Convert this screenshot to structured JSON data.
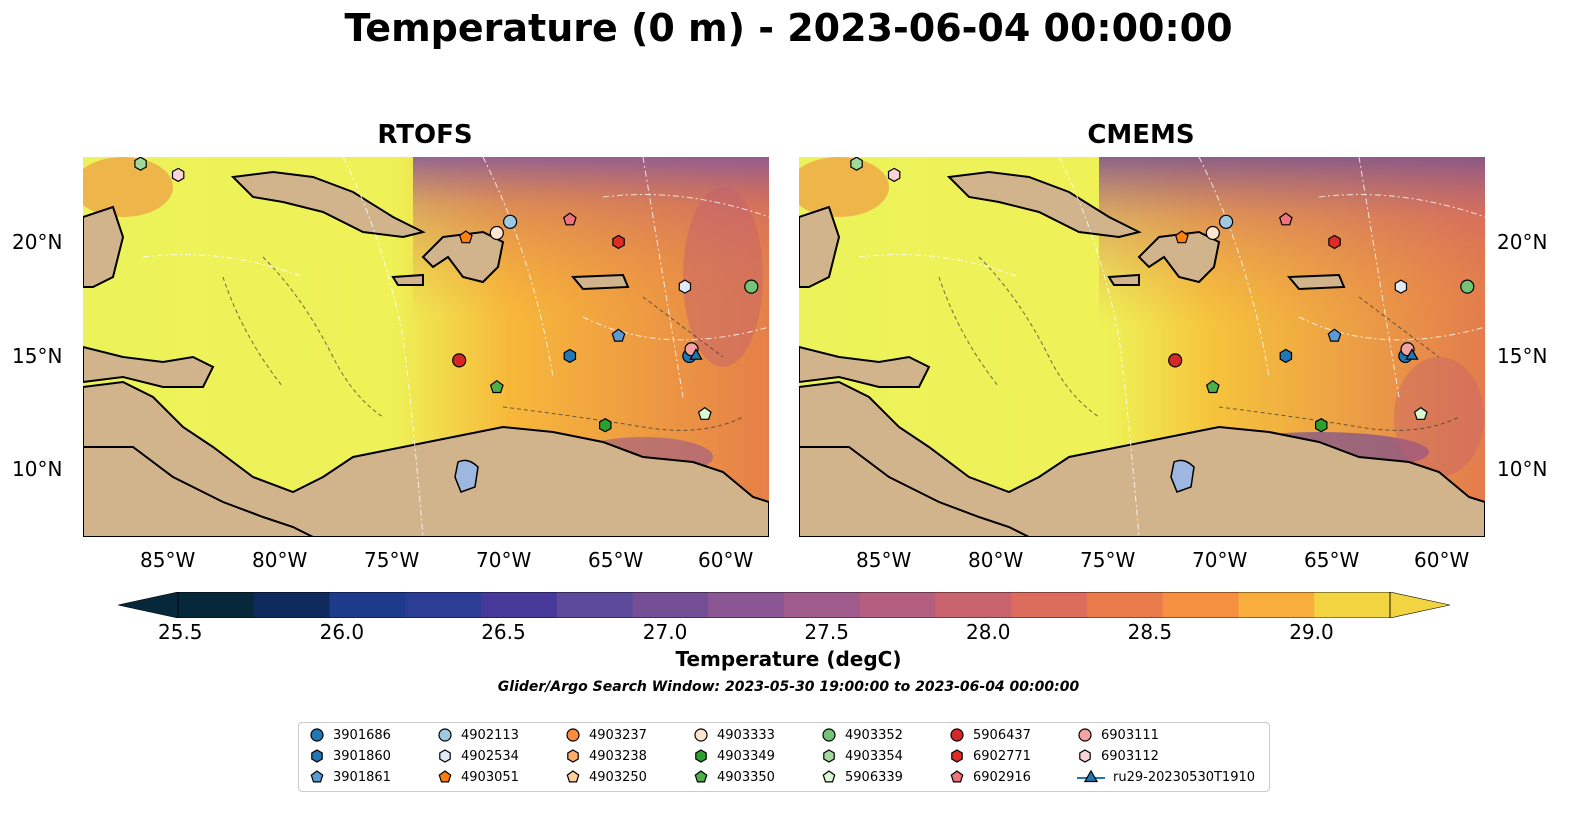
{
  "title": "Temperature (0 m) - 2023-06-04 00:00:00",
  "panels": [
    {
      "title": "RTOFS"
    },
    {
      "title": "CMEMS"
    }
  ],
  "axes": {
    "lat_labels": [
      "20°N",
      "15°N",
      "10°N"
    ],
    "lon_labels": [
      "85°W",
      "80°W",
      "75°W",
      "70°W",
      "65°W",
      "60°W"
    ]
  },
  "colorbar": {
    "label": "Temperature (degC)",
    "ticks": [
      "25.5",
      "26.0",
      "26.5",
      "27.0",
      "27.5",
      "28.0",
      "28.5",
      "29.0"
    ],
    "range": [
      25.5,
      29.25
    ],
    "colors": [
      "#06283a",
      "#0f2b5e",
      "#1e3a8a",
      "#2c3d95",
      "#47399a",
      "#5d4a9a",
      "#744f96",
      "#8a5693",
      "#9f5b8c",
      "#b55f80",
      "#c9636e",
      "#dc6c5b",
      "#ea7c4c",
      "#f49040",
      "#f8ad3c",
      "#f1d440"
    ]
  },
  "subtitle": "Glider/Argo Search Window: 2023-05-30 19:00:00 to 2023-06-04 00:00:00",
  "legend": [
    {
      "label": "3901686",
      "marker": "circle",
      "color": "#1f77b4"
    },
    {
      "label": "3901860",
      "marker": "hexagon",
      "color": "#1f77b4"
    },
    {
      "label": "3901861",
      "marker": "pentagon",
      "color": "#5a9bd5"
    },
    {
      "label": "4902113",
      "marker": "circle",
      "color": "#9ecae1"
    },
    {
      "label": "4902534",
      "marker": "hexagon",
      "color": "#deebf7"
    },
    {
      "label": "4903051",
      "marker": "pentagon",
      "color": "#ff7f0e"
    },
    {
      "label": "4903237",
      "marker": "circle",
      "color": "#fd8d3c"
    },
    {
      "label": "4903238",
      "marker": "hexagon",
      "color": "#fdae6b"
    },
    {
      "label": "4903250",
      "marker": "pentagon",
      "color": "#fdd0a2"
    },
    {
      "label": "4903333",
      "marker": "circle",
      "color": "#fee6ce"
    },
    {
      "label": "4903349",
      "marker": "hexagon",
      "color": "#2ca02c"
    },
    {
      "label": "4903350",
      "marker": "pentagon",
      "color": "#4daf4a"
    },
    {
      "label": "4903352",
      "marker": "circle",
      "color": "#74c476"
    },
    {
      "label": "4903354",
      "marker": "hexagon",
      "color": "#a1d99b"
    },
    {
      "label": "5906339",
      "marker": "pentagon",
      "color": "#d9f7d0"
    },
    {
      "label": "5906437",
      "marker": "circle",
      "color": "#d62728"
    },
    {
      "label": "6902771",
      "marker": "hexagon",
      "color": "#de2d26"
    },
    {
      "label": "6902916",
      "marker": "pentagon",
      "color": "#f1737a"
    },
    {
      "label": "6903111",
      "marker": "circle",
      "color": "#f4a3a3"
    },
    {
      "label": "6903112",
      "marker": "hexagon",
      "color": "#fbd5d5"
    },
    {
      "label": "ru29-20230530T1910",
      "marker": "triangle",
      "color": "#1f77b4"
    }
  ],
  "platforms": [
    {
      "id": "3901686",
      "marker": "circle",
      "color": "#1f77b4",
      "lon": -61.6,
      "lat": 15.1
    },
    {
      "id": "3901860",
      "marker": "hexagon",
      "color": "#1f77b4",
      "lon": -67.0,
      "lat": 15.1
    },
    {
      "id": "3901861",
      "marker": "pentagon",
      "color": "#5a9bd5",
      "lon": -64.8,
      "lat": 16.0
    },
    {
      "id": "4902113",
      "marker": "circle",
      "color": "#9ecae1",
      "lon": -69.7,
      "lat": 21.1
    },
    {
      "id": "4902534",
      "marker": "hexagon",
      "color": "#deebf7",
      "lon": -61.8,
      "lat": 18.2
    },
    {
      "id": "4903051",
      "marker": "pentagon",
      "color": "#ff7f0e",
      "lon": -71.7,
      "lat": 20.4
    },
    {
      "id": "4903333",
      "marker": "circle",
      "color": "#fee6ce",
      "lon": -70.3,
      "lat": 20.6
    },
    {
      "id": "4903349",
      "marker": "hexagon",
      "color": "#2ca02c",
      "lon": -65.4,
      "lat": 12.0
    },
    {
      "id": "4903350",
      "marker": "pentagon",
      "color": "#4daf4a",
      "lon": -70.3,
      "lat": 13.7
    },
    {
      "id": "4903352",
      "marker": "circle",
      "color": "#74c476",
      "lon": -58.8,
      "lat": 18.2
    },
    {
      "id": "4903354",
      "marker": "hexagon",
      "color": "#a1d99b",
      "lon": -86.4,
      "lat": 23.7
    },
    {
      "id": "5906339",
      "marker": "pentagon",
      "color": "#d9f7d0",
      "lon": -60.9,
      "lat": 12.5
    },
    {
      "id": "5906437",
      "marker": "circle",
      "color": "#d62728",
      "lon": -72.0,
      "lat": 14.9
    },
    {
      "id": "6902771",
      "marker": "hexagon",
      "color": "#de2d26",
      "lon": -64.8,
      "lat": 20.2
    },
    {
      "id": "6902916",
      "marker": "pentagon",
      "color": "#f1737a",
      "lon": -67.0,
      "lat": 21.2
    },
    {
      "id": "6903111",
      "marker": "circle",
      "color": "#f4a3a3",
      "lon": -61.5,
      "lat": 15.4
    },
    {
      "id": "6903112",
      "marker": "hexagon",
      "color": "#fbd5d5",
      "lon": -84.7,
      "lat": 23.2
    },
    {
      "id": "ru29-20230530T1910",
      "marker": "triangle",
      "color": "#1f77b4",
      "lon": -61.3,
      "lat": 15.1
    }
  ],
  "map_extent": {
    "lon": [
      -89,
      -58
    ],
    "lat": [
      7,
      24
    ]
  }
}
